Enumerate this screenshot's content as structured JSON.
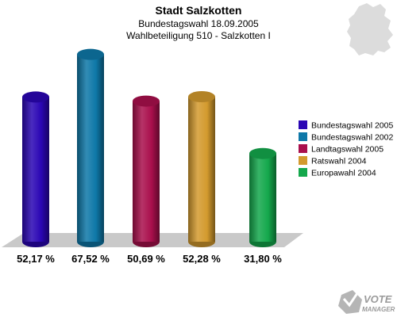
{
  "chart_data": {
    "type": "bar",
    "title": "Stadt Salzkotten",
    "subtitle_lines": [
      "Bundestagswahl 18.09.2005",
      "Wahlbeteiligung 510 - Salzkotten I"
    ],
    "categories": [
      "Bundestagswahl 2005",
      "Bundestagswahl 2002",
      "Landtagswahl 2005",
      "Ratswahl 2004",
      "Europawahl 2004"
    ],
    "values": [
      52.17,
      67.52,
      50.69,
      52.28,
      31.8
    ],
    "value_labels": [
      "52,17 %",
      "67,52 %",
      "50,69 %",
      "52,28 %",
      "31,80 %"
    ],
    "colors": [
      "#2a06b4",
      "#0e78a8",
      "#a90f4c",
      "#d39a2e",
      "#14a84c"
    ],
    "ylim": [
      0,
      70
    ],
    "grid": false,
    "legend": "right"
  },
  "branding": {
    "line1": "VOTE",
    "line2": "MANAGER",
    "map_icon": "germany-map-icon",
    "logo_icon": "vote-manager-logo-icon"
  }
}
